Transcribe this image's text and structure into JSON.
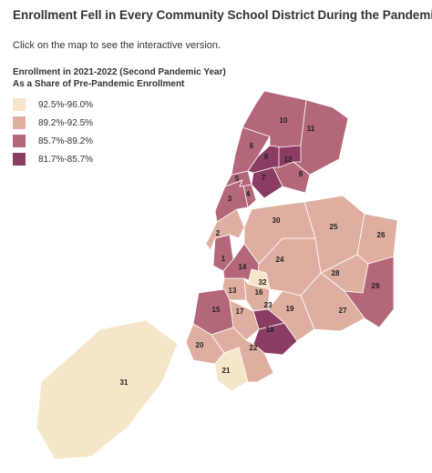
{
  "title": "Enrollment Fell in Every Community School District During the Pandemic",
  "subtitle": "Click on the map to see the interactive version.",
  "legend": {
    "title_line1": "Enrollment in 2021-2022 (Second Pandemic Year)",
    "title_line2": "As a Share of Pre-Pandemic Enrollment",
    "items": [
      {
        "label": "92.5%-96.0%",
        "color": "#f6e6c9"
      },
      {
        "label": "89.2%-92.5%",
        "color": "#deafa0"
      },
      {
        "label": "85.7%-89.2%",
        "color": "#b36779"
      },
      {
        "label": "81.7%-85.7%",
        "color": "#8a3c62"
      }
    ]
  },
  "districts": [
    {
      "id": "1",
      "class": 2
    },
    {
      "id": "2",
      "class": 1
    },
    {
      "id": "3",
      "class": 2
    },
    {
      "id": "4",
      "class": 2
    },
    {
      "id": "5",
      "class": 2
    },
    {
      "id": "6",
      "class": 2
    },
    {
      "id": "7",
      "class": 3
    },
    {
      "id": "8",
      "class": 2
    },
    {
      "id": "9",
      "class": 3
    },
    {
      "id": "10",
      "class": 2
    },
    {
      "id": "11",
      "class": 2
    },
    {
      "id": "12",
      "class": 3
    },
    {
      "id": "13",
      "class": 1
    },
    {
      "id": "14",
      "class": 2
    },
    {
      "id": "15",
      "class": 2
    },
    {
      "id": "16",
      "class": 1
    },
    {
      "id": "17",
      "class": 1
    },
    {
      "id": "18",
      "class": 3
    },
    {
      "id": "19",
      "class": 1
    },
    {
      "id": "20",
      "class": 1
    },
    {
      "id": "21",
      "class": 0
    },
    {
      "id": "22",
      "class": 1
    },
    {
      "id": "23",
      "class": 3
    },
    {
      "id": "24",
      "class": 1
    },
    {
      "id": "25",
      "class": 1
    },
    {
      "id": "26",
      "class": 1
    },
    {
      "id": "27",
      "class": 1
    },
    {
      "id": "28",
      "class": 1
    },
    {
      "id": "29",
      "class": 2
    },
    {
      "id": "30",
      "class": 1
    },
    {
      "id": "31",
      "class": 0
    },
    {
      "id": "32",
      "class": 0
    }
  ]
}
